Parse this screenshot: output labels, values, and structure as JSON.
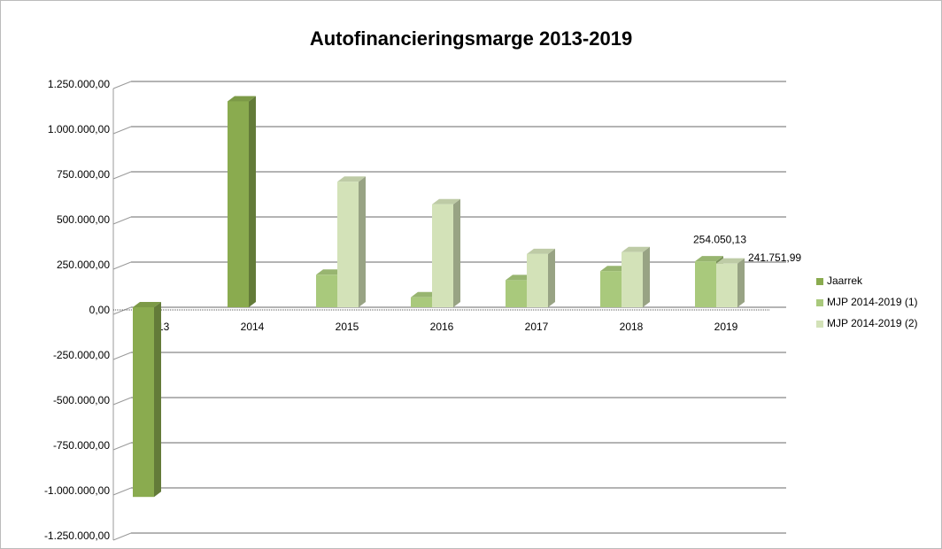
{
  "chart_data": {
    "type": "bar3d",
    "title": "Autofinancieringsmarge 2013-2019",
    "categories": [
      "2013",
      "2014",
      "2015",
      "2016",
      "2017",
      "2018",
      "2019"
    ],
    "series": [
      {
        "name": "Jaarrek",
        "color": "#8aab4f",
        "values": [
          -1050000,
          1140000,
          null,
          null,
          null,
          null,
          null
        ]
      },
      {
        "name": "MJP 2014-2019 (1)",
        "color": "#a9c97c",
        "values": [
          null,
          null,
          180000,
          55000,
          150000,
          200000,
          254050.13
        ],
        "value_labels": [
          null,
          null,
          null,
          null,
          null,
          null,
          "254.050,13"
        ]
      },
      {
        "name": "MJP 2014-2019 (2)",
        "color": "#d3e2b8",
        "values": [
          null,
          null,
          695000,
          570000,
          295000,
          305000,
          241751.99
        ],
        "value_labels": [
          null,
          null,
          null,
          null,
          null,
          null,
          "241.751,99"
        ]
      }
    ],
    "ylim": [
      -1250000,
      1250000
    ],
    "yticks": [
      {
        "value": -1250000,
        "label": "-1.250.000,00"
      },
      {
        "value": -1000000,
        "label": "-1.000.000,00"
      },
      {
        "value": -750000,
        "label": "-750.000,00"
      },
      {
        "value": -500000,
        "label": "-500.000,00"
      },
      {
        "value": -250000,
        "label": "-250.000,00"
      },
      {
        "value": 0,
        "label": "0,00"
      },
      {
        "value": 250000,
        "label": "250.000,00"
      },
      {
        "value": 500000,
        "label": "500.000,00"
      },
      {
        "value": 750000,
        "label": "750.000,00"
      },
      {
        "value": 1000000,
        "label": "1.000.000,00"
      },
      {
        "value": 1250000,
        "label": "1.250.000,00"
      }
    ],
    "grid": true,
    "legend": "right"
  }
}
